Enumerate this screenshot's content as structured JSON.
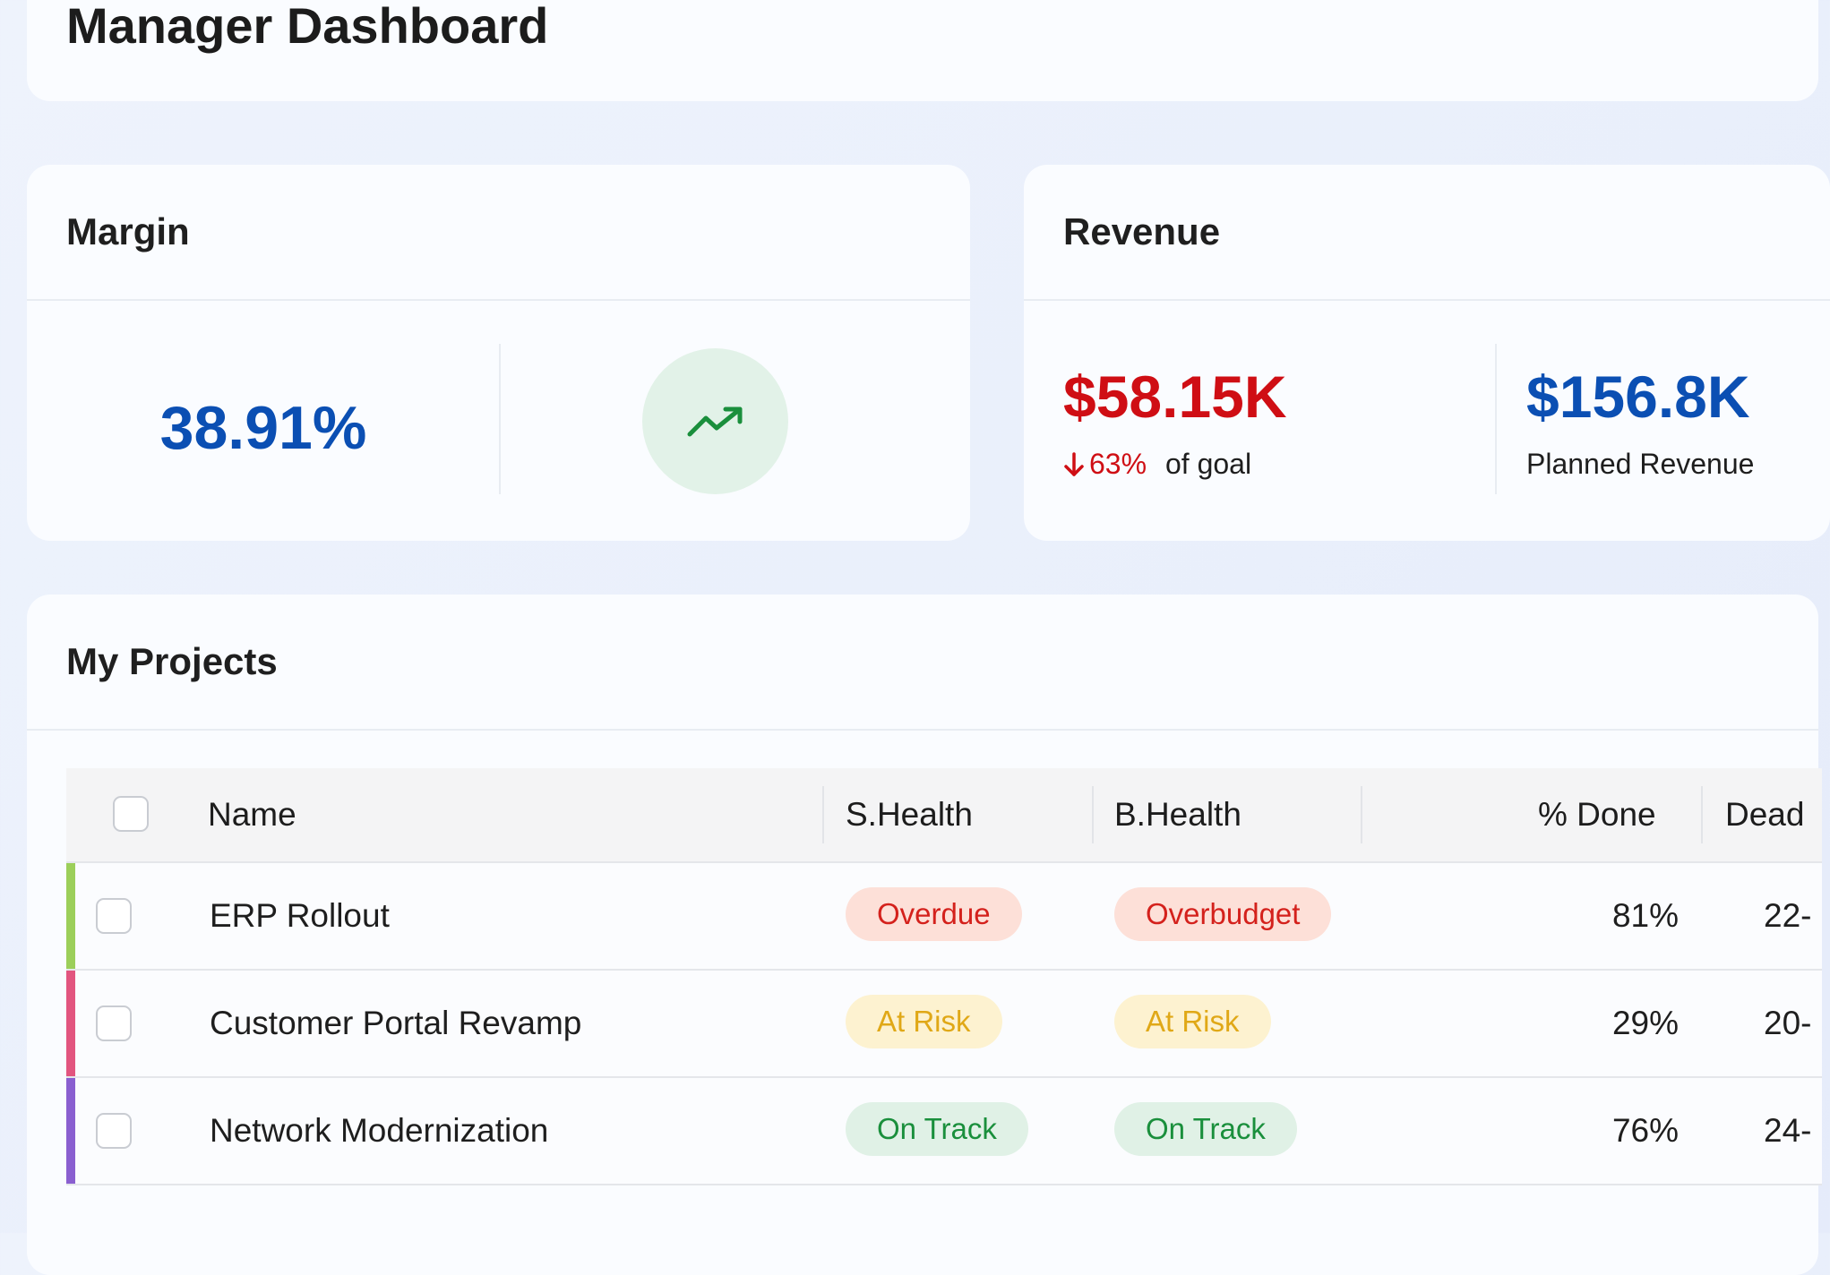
{
  "page": {
    "title": "Manager Dashboard"
  },
  "margin": {
    "title": "Margin",
    "value": "38.91%",
    "trend_icon": "trending-up-icon"
  },
  "revenue": {
    "title": "Revenue",
    "actual": "$58.15K",
    "pct_of_goal": "63%",
    "pct_direction": "down",
    "goal_label": "of goal",
    "planned": "$156.8K",
    "planned_label": "Planned Revenue"
  },
  "projects": {
    "title": "My Projects",
    "columns": {
      "name": "Name",
      "s_health": "S.Health",
      "b_health": "B.Health",
      "done": "% Done",
      "deadline": "Dead"
    },
    "rows": [
      {
        "name": "ERP Rollout",
        "s_health": "Overdue",
        "b_health": "Overbudget",
        "done": "81%",
        "deadline": "22-",
        "bar_color": "#9ccf5a",
        "s_style": "overdue",
        "b_style": "overbudget"
      },
      {
        "name": "Customer Portal Revamp",
        "s_health": "At Risk",
        "b_health": "At Risk",
        "done": "29%",
        "deadline": "20-",
        "bar_color": "#e2557f",
        "s_style": "atrisk",
        "b_style": "atrisk"
      },
      {
        "name": "Network Modernization",
        "s_health": "On Track",
        "b_health": "On Track",
        "done": "76%",
        "deadline": "24-",
        "bar_color": "#8a5fd0",
        "s_style": "ontrack",
        "b_style": "ontrack"
      }
    ]
  },
  "colors": {
    "primary_blue": "#0b4fb3",
    "negative_red": "#cf0e14",
    "positive_green": "#1a8f3c"
  }
}
